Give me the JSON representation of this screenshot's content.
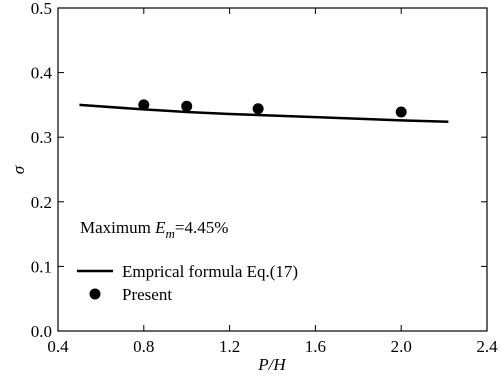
{
  "chart_data": {
    "type": "line",
    "xlabel": "P/H",
    "ylabel": "σ",
    "annotation": [
      "Maximum ",
      "E",
      "m",
      "=4.45%"
    ],
    "xlim": [
      0.4,
      2.4
    ],
    "xticks": [
      0.4,
      0.8,
      1.2,
      1.6,
      {
        "value": 2,
        "label": "2.0"
      },
      2.4
    ],
    "ylim": [
      0,
      0.5
    ],
    "yticks": [
      {
        "value": 0,
        "label": "0.0"
      },
      0.1,
      0.2,
      0.3,
      0.4,
      0.5
    ],
    "legend": "lower-left",
    "series": [
      {
        "name": "Emprical formula Eq.(17)",
        "type": "line",
        "color": "#000000",
        "x": [
          0.5,
          0.8,
          1.0,
          1.2,
          1.6,
          2.0,
          2.22
        ],
        "values": [
          0.35,
          0.343,
          0.339,
          0.336,
          0.331,
          0.326,
          0.324
        ]
      },
      {
        "name": "Present",
        "type": "scatter",
        "color": "#000000",
        "x": [
          0.8,
          1.0,
          1.333,
          2.0
        ],
        "values": [
          0.35,
          0.348,
          0.344,
          0.339
        ]
      }
    ]
  }
}
